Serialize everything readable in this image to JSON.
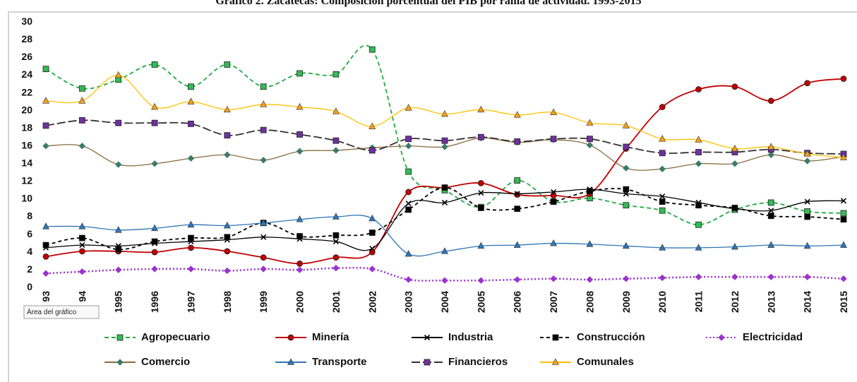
{
  "chart_data": {
    "type": "line",
    "title": "Gráfico 2. Zacatecas: Composición porcentual del PIB por rama de actividad. 1993-2015",
    "tooltip": "Área del gráfico",
    "categories": [
      "93",
      "94",
      "1995",
      "1996",
      "1997",
      "1998",
      "1999",
      "2000",
      "2001",
      "2002",
      "2003",
      "2004",
      "2005",
      "2006",
      "2007",
      "2008",
      "2009",
      "2010",
      "2011",
      "2012",
      "2013",
      "2014",
      "2015"
    ],
    "ylim": [
      0,
      30
    ],
    "yticks": [
      0,
      2,
      4,
      6,
      8,
      10,
      12,
      14,
      16,
      18,
      20,
      22,
      24,
      26,
      28,
      30
    ],
    "smooth": true,
    "series": [
      {
        "name": "Agropecuario",
        "color": "#22aa44",
        "dash": "6,4",
        "marker": "square",
        "marker_color": "#33bb55",
        "values": [
          24.6,
          22.4,
          23.4,
          25.1,
          22.6,
          25.1,
          22.6,
          24.1,
          24.0,
          26.8,
          13.0,
          10.9,
          9.0,
          12.0,
          9.6,
          10.0,
          9.2,
          8.6,
          7.0,
          8.7,
          9.5,
          8.5,
          8.3
        ]
      },
      {
        "name": "Minería",
        "color": "#c00000",
        "dash": "",
        "marker": "circle",
        "marker_color": "#c00000",
        "values": [
          3.4,
          4.0,
          4.0,
          3.9,
          4.4,
          4.0,
          3.3,
          2.6,
          3.3,
          3.9,
          10.7,
          11.2,
          11.7,
          10.4,
          10.3,
          10.5,
          15.6,
          20.3,
          22.3,
          22.6,
          21.0,
          23.0,
          23.5
        ]
      },
      {
        "name": "Industria",
        "color": "#000000",
        "dash": "",
        "marker": "x",
        "marker_color": "#000000",
        "values": [
          4.4,
          4.7,
          4.6,
          4.9,
          5.1,
          5.3,
          5.6,
          5.4,
          5.1,
          4.3,
          9.4,
          9.5,
          10.6,
          10.5,
          10.7,
          11.0,
          10.5,
          10.2,
          9.5,
          8.8,
          8.6,
          9.6,
          9.7
        ]
      },
      {
        "name": "Construcción",
        "color": "#000000",
        "dash": "5,4",
        "marker": "square",
        "marker_color": "#000000",
        "values": [
          4.7,
          5.5,
          4.2,
          5.1,
          5.5,
          5.6,
          7.2,
          5.7,
          5.8,
          6.1,
          8.7,
          11.2,
          8.9,
          8.8,
          9.6,
          10.8,
          11.0,
          9.6,
          9.2,
          8.9,
          8.0,
          7.9,
          7.6
        ]
      },
      {
        "name": "Electricidad",
        "color": "#9933cc",
        "dash": "2,3",
        "marker": "diamond",
        "marker_color": "#9933cc",
        "values": [
          1.5,
          1.7,
          1.9,
          2.0,
          2.0,
          1.8,
          2.0,
          1.9,
          2.1,
          2.0,
          0.8,
          0.7,
          0.7,
          0.8,
          0.9,
          0.8,
          0.9,
          1.0,
          1.1,
          1.1,
          1.1,
          1.1,
          0.9
        ]
      },
      {
        "name": "Comercio",
        "color": "#8b6b3d",
        "dash": "",
        "marker": "diamond",
        "marker_color": "#3a7a6a",
        "values": [
          15.9,
          15.9,
          13.8,
          13.9,
          14.5,
          14.9,
          14.3,
          15.3,
          15.4,
          15.7,
          15.9,
          15.8,
          16.8,
          16.3,
          16.6,
          16.0,
          13.4,
          13.3,
          13.9,
          13.9,
          14.9,
          14.2,
          14.7
        ]
      },
      {
        "name": "Transporte",
        "color": "#2e75b6",
        "dash": "",
        "marker": "triangle",
        "marker_color": "#2e75b6",
        "values": [
          6.8,
          6.8,
          6.4,
          6.6,
          7.0,
          6.9,
          7.2,
          7.6,
          7.9,
          7.7,
          3.7,
          4.0,
          4.6,
          4.7,
          4.9,
          4.8,
          4.6,
          4.4,
          4.4,
          4.5,
          4.7,
          4.6,
          4.7
        ]
      },
      {
        "name": "Financieros",
        "color": "#333333",
        "dash": "12,4",
        "marker": "square",
        "marker_color": "#7030a0",
        "values": [
          18.2,
          18.8,
          18.5,
          18.5,
          18.4,
          17.1,
          17.7,
          17.2,
          16.5,
          15.4,
          16.7,
          16.5,
          16.9,
          16.4,
          16.7,
          16.7,
          15.8,
          15.1,
          15.2,
          15.2,
          15.5,
          15.1,
          15.0
        ]
      },
      {
        "name": "Comunales",
        "color": "#ffc000",
        "dash": "",
        "marker": "triangle",
        "marker_color": "#f0a020",
        "values": [
          21.0,
          21.0,
          23.9,
          20.3,
          20.9,
          20.0,
          20.6,
          20.3,
          19.8,
          18.1,
          20.2,
          19.5,
          20.0,
          19.4,
          19.7,
          18.5,
          18.2,
          16.7,
          16.6,
          15.6,
          15.8,
          15.0,
          14.6
        ]
      }
    ]
  }
}
